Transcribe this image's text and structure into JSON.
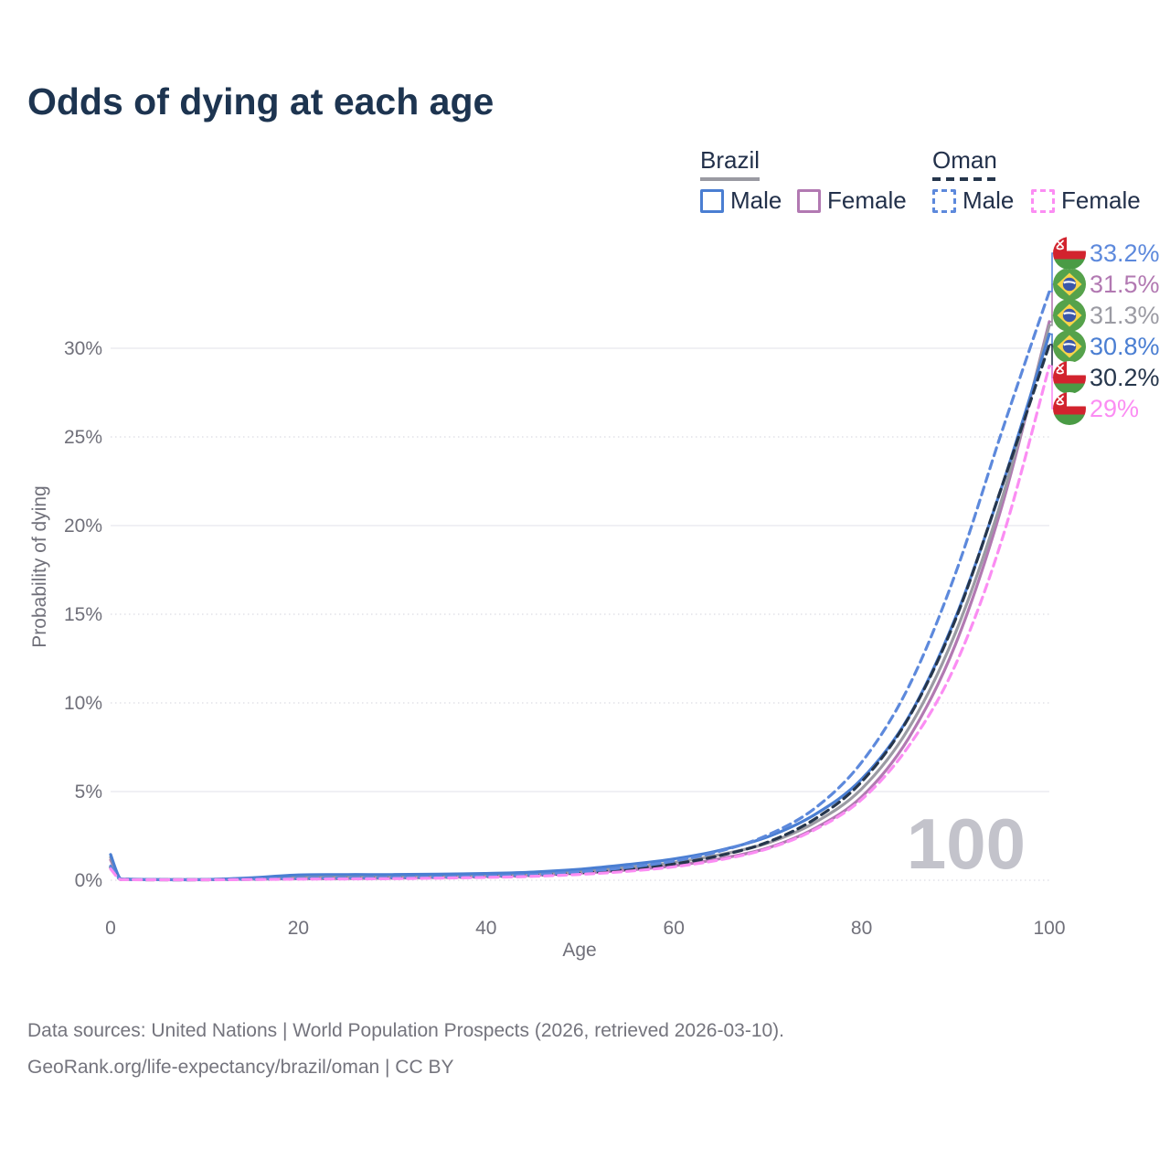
{
  "title": "Odds of dying at each age",
  "legend": {
    "groups": [
      {
        "country": "Brazil",
        "line_style": "solid",
        "underline_color": "#9a9aa2",
        "items": [
          {
            "label": "Male",
            "color": "#4a7ed2"
          },
          {
            "label": "Female",
            "color": "#b279b2"
          }
        ]
      },
      {
        "country": "Oman",
        "line_style": "dashed",
        "underline_color": "#26364c",
        "items": [
          {
            "label": "Male",
            "color": "#5d89dc"
          },
          {
            "label": "Female",
            "color": "#fb8df3"
          }
        ]
      }
    ]
  },
  "chart_data": {
    "type": "line",
    "title": "Odds of dying at each age",
    "xlabel": "Age",
    "ylabel": "Probability of dying",
    "xlim": [
      0,
      100
    ],
    "ylim_pct": [
      0,
      33.5
    ],
    "x_ticks": [
      0,
      20,
      40,
      60,
      80,
      100
    ],
    "y_tick_labels": [
      "0%",
      "5%",
      "10%",
      "15%",
      "20%",
      "25%",
      "30%"
    ],
    "grid": "horizontal",
    "legend_position": "top-right",
    "hover_age_label": "100",
    "ages": [
      0,
      1,
      2,
      5,
      10,
      15,
      20,
      25,
      30,
      35,
      40,
      45,
      50,
      55,
      60,
      65,
      70,
      75,
      80,
      85,
      90,
      95,
      100
    ],
    "series": [
      {
        "id": "brazil-female",
        "country": "Brazil",
        "sex": "Female",
        "color": "#b279b2",
        "dash": false,
        "end_label": "31.5%",
        "label_slot": 1,
        "values_pct": [
          1.15,
          0.08,
          0.045,
          0.03,
          0.03,
          0.06,
          0.09,
          0.1,
          0.12,
          0.16,
          0.21,
          0.28,
          0.4,
          0.57,
          0.82,
          1.22,
          1.82,
          2.92,
          4.7,
          8.0,
          13.3,
          21.2,
          31.5
        ]
      },
      {
        "id": "brazil-both-sexes",
        "country": "Brazil",
        "sex": "Both",
        "color": "#9b9ba3",
        "dash": false,
        "end_label": "31.3%",
        "label_slot": 2,
        "values_pct": [
          1.3,
          0.09,
          0.05,
          0.035,
          0.035,
          0.1,
          0.2,
          0.21,
          0.22,
          0.25,
          0.29,
          0.37,
          0.5,
          0.72,
          1.0,
          1.45,
          2.1,
          3.25,
          5.15,
          8.55,
          13.95,
          21.6,
          31.3
        ]
      },
      {
        "id": "brazil-male",
        "country": "Brazil",
        "sex": "Male",
        "color": "#4a7ed2",
        "dash": false,
        "end_label": "30.8%",
        "label_slot": 3,
        "values_pct": [
          1.45,
          0.1,
          0.06,
          0.04,
          0.04,
          0.14,
          0.3,
          0.32,
          0.32,
          0.34,
          0.38,
          0.46,
          0.62,
          0.88,
          1.2,
          1.7,
          2.45,
          3.7,
          5.7,
          9.2,
          14.8,
          22.3,
          30.8
        ]
      },
      {
        "id": "oman-both-sexes",
        "country": "Oman",
        "sex": "Both",
        "color": "#26364c",
        "dash": true,
        "end_label": "30.2%",
        "label_slot": 4,
        "values_pct": [
          0.72,
          0.05,
          0.035,
          0.025,
          0.025,
          0.05,
          0.08,
          0.1,
          0.12,
          0.15,
          0.19,
          0.27,
          0.4,
          0.61,
          0.92,
          1.4,
          2.15,
          3.45,
          5.55,
          9.15,
          14.7,
          22.3,
          30.2
        ]
      },
      {
        "id": "oman-male",
        "country": "Oman",
        "sex": "Male",
        "color": "#5d89dc",
        "dash": true,
        "end_label": "33.2%",
        "label_slot": 0,
        "values_pct": [
          0.8,
          0.06,
          0.04,
          0.03,
          0.03,
          0.06,
          0.11,
          0.13,
          0.15,
          0.18,
          0.23,
          0.32,
          0.48,
          0.72,
          1.08,
          1.65,
          2.55,
          4.05,
          6.65,
          10.9,
          17.3,
          25.4,
          33.2
        ]
      },
      {
        "id": "oman-female",
        "country": "Oman",
        "sex": "Female",
        "color": "#fb8df3",
        "dash": true,
        "end_label": "29%",
        "label_slot": 5,
        "values_pct": [
          0.64,
          0.045,
          0.03,
          0.02,
          0.02,
          0.04,
          0.06,
          0.07,
          0.09,
          0.12,
          0.16,
          0.22,
          0.33,
          0.5,
          0.76,
          1.16,
          1.78,
          2.85,
          4.55,
          7.55,
          12.15,
          19.3,
          29.0
        ]
      }
    ]
  },
  "flags": {
    "brazil": {
      "green": "#55a24b",
      "yellow": "#f7d54a",
      "blue": "#3b57a8",
      "band": "#ffffff"
    },
    "oman": {
      "red": "#d2232e",
      "green": "#4a9b45",
      "white": "#ffffff"
    }
  },
  "footer": {
    "line1": "Data sources: United Nations | World Population Prospects (2026, retrieved 2026-03-10).",
    "line2": "GeoRank.org/life-expectancy/brazil/oman | CC BY"
  }
}
